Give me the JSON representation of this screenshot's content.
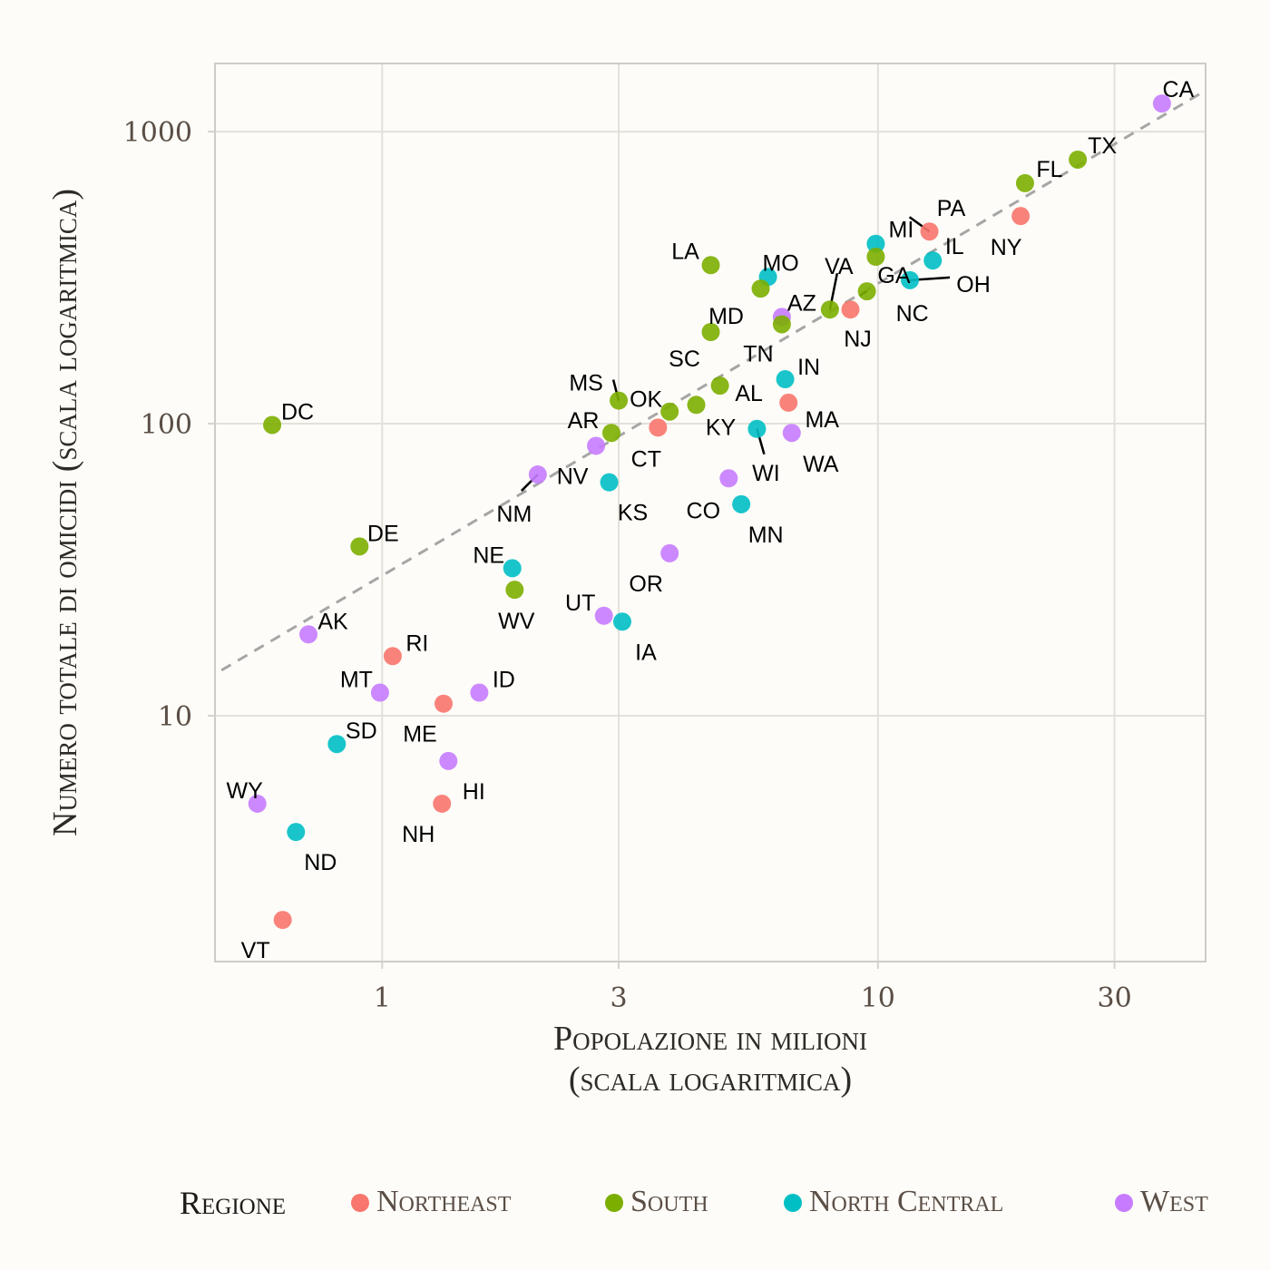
{
  "chart_data": {
    "type": "scatter",
    "title": "",
    "xlabel": [
      "Popolazione in milioni",
      "(scala logaritmica)"
    ],
    "ylabel": "Numero totale di omicidi (scala logaritmica)",
    "x_scale": "log10",
    "y_scale": "log10",
    "xlim": [
      0.46,
      45.8
    ],
    "ylim": [
      1.44,
      1711
    ],
    "x_ticks": [
      1,
      3,
      10,
      30
    ],
    "x_tick_labels": [
      "1",
      "3",
      "10",
      "30"
    ],
    "y_ticks": [
      10,
      100,
      1000
    ],
    "y_tick_labels": [
      "10",
      "100",
      "1000"
    ],
    "grid": true,
    "reference_line": {
      "style": "dashed",
      "color": "#a6a6a6",
      "slope_log": 1,
      "rate_multiplier": 30.2,
      "description": "omicidi = 30.2 × popolazione"
    },
    "legend": {
      "title": "Regione",
      "placement": "bottom",
      "entries": [
        {
          "name": "Northeast",
          "color": "#f8766d"
        },
        {
          "name": "South",
          "color": "#7cae00"
        },
        {
          "name": "North Central",
          "color": "#00bfc4"
        },
        {
          "name": "West",
          "color": "#c77cff"
        }
      ]
    },
    "points": [
      {
        "label": "CA",
        "region": "West",
        "x": 37.4,
        "y": 1248
      },
      {
        "label": "TX",
        "region": "South",
        "x": 25.3,
        "y": 802
      },
      {
        "label": "FL",
        "region": "South",
        "x": 19.8,
        "y": 666
      },
      {
        "label": "NY",
        "region": "Northeast",
        "x": 19.4,
        "y": 514
      },
      {
        "label": "PA",
        "region": "Northeast",
        "x": 12.7,
        "y": 455
      },
      {
        "label": "IL",
        "region": "North Central",
        "x": 12.9,
        "y": 362
      },
      {
        "label": "MI",
        "region": "North Central",
        "x": 9.9,
        "y": 413
      },
      {
        "label": "GA",
        "region": "South",
        "x": 9.9,
        "y": 373
      },
      {
        "label": "OH",
        "region": "North Central",
        "x": 11.6,
        "y": 310
      },
      {
        "label": "NC",
        "region": "South",
        "x": 9.5,
        "y": 284
      },
      {
        "label": "NJ",
        "region": "Northeast",
        "x": 8.8,
        "y": 246
      },
      {
        "label": "VA",
        "region": "South",
        "x": 8.0,
        "y": 246
      },
      {
        "label": "MO",
        "region": "North Central",
        "x": 6.0,
        "y": 318
      },
      {
        "label": "LA",
        "region": "South",
        "x": 4.6,
        "y": 349
      },
      {
        "label": "MD",
        "region": "South",
        "x": 5.8,
        "y": 290
      },
      {
        "label": "AZ",
        "region": "West",
        "x": 6.4,
        "y": 232
      },
      {
        "label": "TN",
        "region": "South",
        "x": 6.4,
        "y": 219
      },
      {
        "label": "SC",
        "region": "South",
        "x": 4.6,
        "y": 206
      },
      {
        "label": "IN",
        "region": "North Central",
        "x": 6.5,
        "y": 142
      },
      {
        "label": "AL",
        "region": "South",
        "x": 4.8,
        "y": 135
      },
      {
        "label": "MA",
        "region": "Northeast",
        "x": 6.6,
        "y": 118
      },
      {
        "label": "KY",
        "region": "South",
        "x": 4.3,
        "y": 116
      },
      {
        "label": "OK",
        "region": "South",
        "x": 3.8,
        "y": 110
      },
      {
        "label": "MS",
        "region": "South",
        "x": 3.0,
        "y": 120
      },
      {
        "label": "CT",
        "region": "Northeast",
        "x": 3.6,
        "y": 97
      },
      {
        "label": "WI",
        "region": "North Central",
        "x": 5.7,
        "y": 96
      },
      {
        "label": "WA",
        "region": "West",
        "x": 6.7,
        "y": 93
      },
      {
        "label": "AR",
        "region": "South",
        "x": 2.9,
        "y": 93
      },
      {
        "label": "NV",
        "region": "West",
        "x": 2.7,
        "y": 84
      },
      {
        "label": "DC",
        "region": "South",
        "x": 0.6,
        "y": 99
      },
      {
        "label": "NM",
        "region": "West",
        "x": 2.06,
        "y": 67
      },
      {
        "label": "CO",
        "region": "West",
        "x": 5.0,
        "y": 65
      },
      {
        "label": "KS",
        "region": "North Central",
        "x": 2.87,
        "y": 63
      },
      {
        "label": "MN",
        "region": "North Central",
        "x": 5.3,
        "y": 53
      },
      {
        "label": "DE",
        "region": "South",
        "x": 0.9,
        "y": 38
      },
      {
        "label": "OR",
        "region": "West",
        "x": 3.8,
        "y": 36
      },
      {
        "label": "NE",
        "region": "North Central",
        "x": 1.83,
        "y": 32
      },
      {
        "label": "WV",
        "region": "South",
        "x": 1.85,
        "y": 27
      },
      {
        "label": "UT",
        "region": "West",
        "x": 2.8,
        "y": 22
      },
      {
        "label": "IA",
        "region": "North Central",
        "x": 3.05,
        "y": 21
      },
      {
        "label": "AK",
        "region": "West",
        "x": 0.71,
        "y": 19
      },
      {
        "label": "RI",
        "region": "Northeast",
        "x": 1.05,
        "y": 16
      },
      {
        "label": "MT",
        "region": "West",
        "x": 0.99,
        "y": 12
      },
      {
        "label": "ID",
        "region": "West",
        "x": 1.57,
        "y": 12
      },
      {
        "label": "ME",
        "region": "Northeast",
        "x": 1.33,
        "y": 11
      },
      {
        "label": "SD",
        "region": "North Central",
        "x": 0.81,
        "y": 8
      },
      {
        "label": "HI",
        "region": "West",
        "x": 1.36,
        "y": 7
      },
      {
        "label": "NH",
        "region": "Northeast",
        "x": 1.32,
        "y": 5
      },
      {
        "label": "WY",
        "region": "West",
        "x": 0.56,
        "y": 5
      },
      {
        "label": "ND",
        "region": "North Central",
        "x": 0.67,
        "y": 4
      },
      {
        "label": "VT",
        "region": "Northeast",
        "x": 0.63,
        "y": 2
      }
    ]
  }
}
